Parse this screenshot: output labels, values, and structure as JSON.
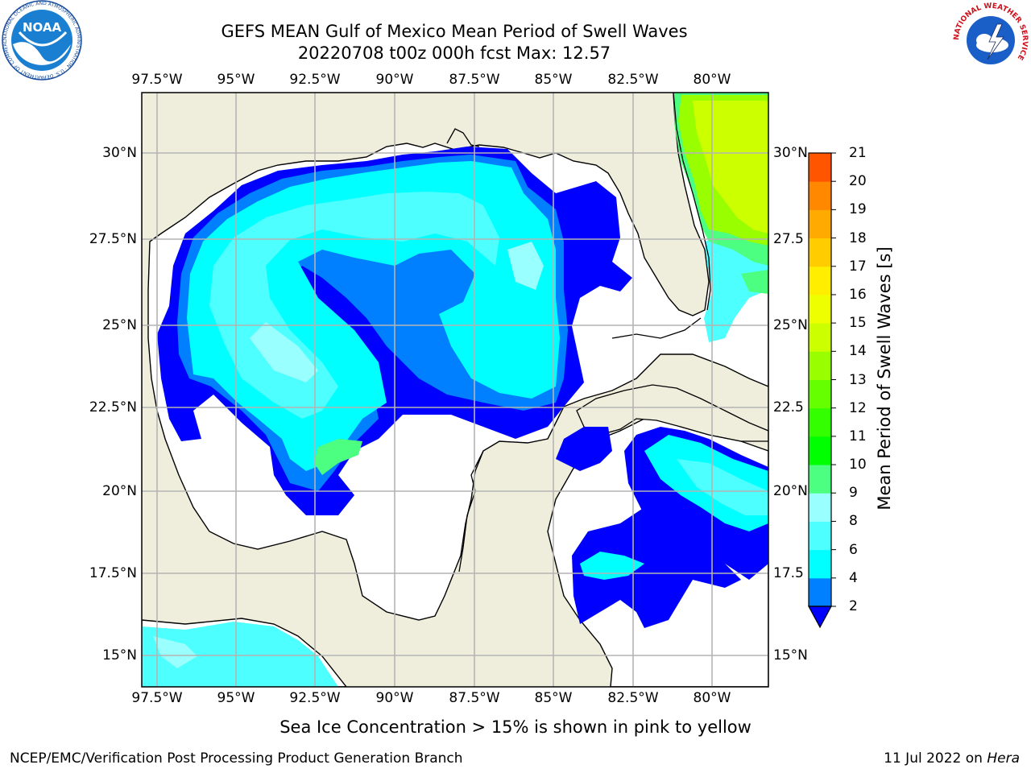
{
  "title": {
    "line1": "GEFS MEAN Gulf of Mexico Mean Period of Swell Waves",
    "line2": "20220708 t00z 000h fcst   Max: 12.57"
  },
  "map": {
    "lon_ticks": [
      "97.5°W",
      "95°W",
      "92.5°W",
      "90°W",
      "87.5°W",
      "85°W",
      "82.5°W",
      "80°W"
    ],
    "lat_ticks": [
      "30°N",
      "27.5°N",
      "25°N",
      "22.5°N",
      "20°N",
      "17.5°N",
      "15°N"
    ],
    "lat_ticks_right": [
      "30°N",
      "27.5",
      "25°N",
      "22.5",
      "20°N",
      "17.5",
      "15°N"
    ],
    "colors": {
      "land": "#efeddc",
      "ocean": "#ffffff",
      "grid": "#b4b4b4",
      "coast": "#000000"
    }
  },
  "colorbar": {
    "label": "Mean Period of Swell Waves [s]",
    "ticks": [
      "2",
      "4",
      "6",
      "8",
      "9",
      "10",
      "11",
      "12",
      "13",
      "14",
      "15",
      "16",
      "17",
      "18",
      "19",
      "20",
      "21"
    ],
    "colors": [
      "#0000ff",
      "#0080ff",
      "#00ffff",
      "#4dffff",
      "#99ffff",
      "#4dff80",
      "#00ff00",
      "#33ff00",
      "#99ff00",
      "#ccff00",
      "#ffff00",
      "#ffdd00",
      "#ffbb00",
      "#ff9900",
      "#ff6600",
      "#ff3300",
      "#ff0000"
    ],
    "extend_color": "#0000ff"
  },
  "note": "Sea Ice Concentration > 15% is shown in pink to yellow",
  "footer": {
    "left": "NCEP/EMC/Verification Post Processing Product Generation Branch",
    "date": "11 Jul 2022 on ",
    "machine": "Hera"
  },
  "logos": {
    "noaa_text": "NOAA",
    "noaa_ring": "NATIONAL OCEANIC AND ATMOSPHERIC ADMINISTRATION · U.S. DEPARTMENT OF COMMERCE",
    "nws_ring": "NATIONAL WEATHER SERVICE"
  }
}
